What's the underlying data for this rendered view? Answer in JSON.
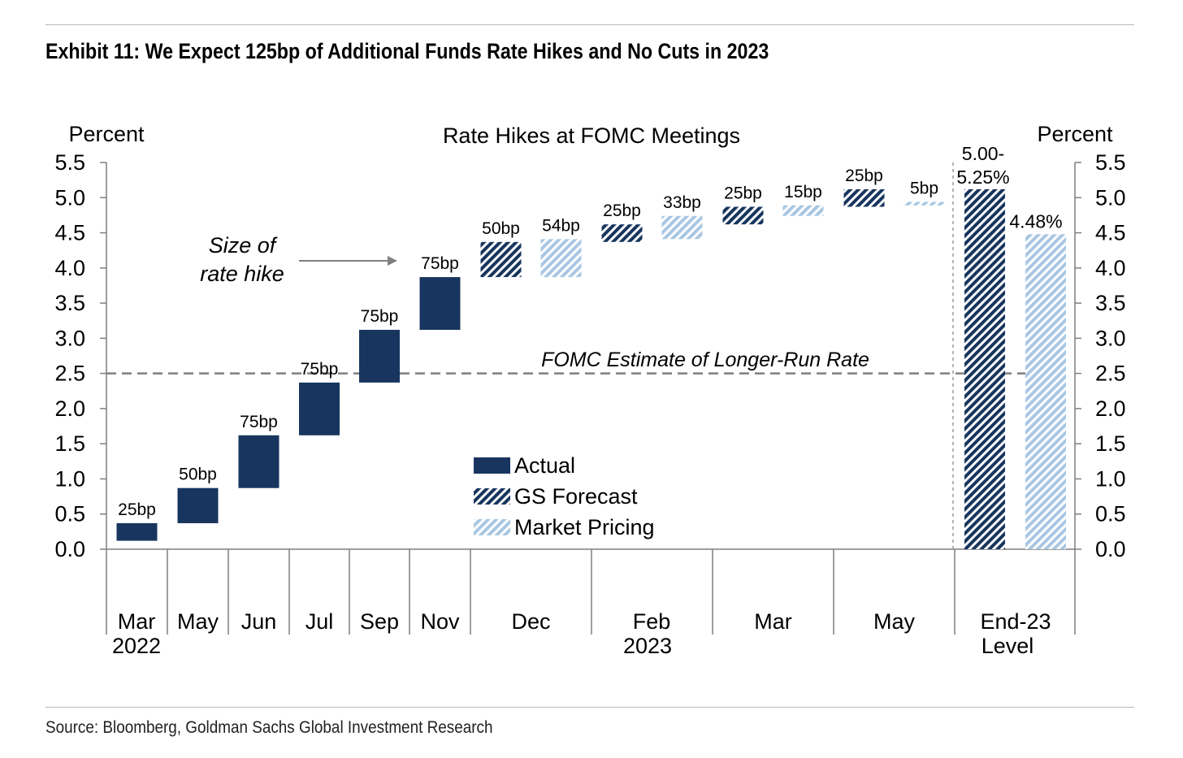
{
  "header": {
    "title": "Exhibit 11: We Expect 125bp of Additional Funds Rate Hikes and No Cuts in 2023"
  },
  "footer": {
    "source": "Source: Bloomberg, Goldman Sachs Global Investment Research"
  },
  "colors": {
    "actual": "#17355e",
    "gs_forecast": "#17355e",
    "market_pricing": "#a9c7e3",
    "reference_line": "#7f7f7f"
  },
  "chart_data": {
    "type": "bar",
    "subtype": "floating-bar",
    "title": "Rate Hikes at FOMC Meetings",
    "ylabel_left": "Percent",
    "ylabel_right": "Percent",
    "ylim": [
      0,
      5.5
    ],
    "yticks": [
      "0.0",
      "0.5",
      "1.0",
      "1.5",
      "2.0",
      "2.5",
      "3.0",
      "3.5",
      "4.0",
      "4.5",
      "5.0",
      "5.5"
    ],
    "grid": false,
    "legend": {
      "placement": "bottom-center",
      "entries": [
        "Actual",
        "GS Forecast",
        "Market Pricing"
      ]
    },
    "categories": [
      {
        "line1": "Mar",
        "line2": "2022"
      },
      {
        "line1": "May",
        "line2": ""
      },
      {
        "line1": "Jun",
        "line2": ""
      },
      {
        "line1": "Jul",
        "line2": ""
      },
      {
        "line1": "Sep",
        "line2": ""
      },
      {
        "line1": "Nov",
        "line2": ""
      },
      {
        "line1": "Dec",
        "line2": ""
      },
      {
        "line1": "Feb",
        "line2": "2023"
      },
      {
        "line1": "Mar",
        "line2": ""
      },
      {
        "line1": "May",
        "line2": ""
      },
      {
        "line1": "End-23",
        "line2": "Level"
      }
    ],
    "bars": [
      {
        "category": "Mar 2022",
        "series": "Actual",
        "low": 0.12,
        "high": 0.37,
        "label": "25bp"
      },
      {
        "category": "May",
        "series": "Actual",
        "low": 0.37,
        "high": 0.87,
        "label": "50bp"
      },
      {
        "category": "Jun",
        "series": "Actual",
        "low": 0.87,
        "high": 1.62,
        "label": "75bp"
      },
      {
        "category": "Jul",
        "series": "Actual",
        "low": 1.62,
        "high": 2.37,
        "label": "75bp"
      },
      {
        "category": "Sep",
        "series": "Actual",
        "low": 2.37,
        "high": 3.12,
        "label": "75bp"
      },
      {
        "category": "Nov",
        "series": "Actual",
        "low": 3.12,
        "high": 3.87,
        "label": "75bp"
      },
      {
        "category": "Dec",
        "series": "GS Forecast",
        "low": 3.87,
        "high": 4.37,
        "label": "50bp"
      },
      {
        "category": "Dec",
        "series": "Market Pricing",
        "low": 3.87,
        "high": 4.41,
        "label": "54bp"
      },
      {
        "category": "Feb 2023",
        "series": "GS Forecast",
        "low": 4.37,
        "high": 4.62,
        "label": "25bp"
      },
      {
        "category": "Feb 2023",
        "series": "Market Pricing",
        "low": 4.41,
        "high": 4.74,
        "label": "33bp"
      },
      {
        "category": "Mar",
        "series": "GS Forecast",
        "low": 4.62,
        "high": 4.87,
        "label": "25bp"
      },
      {
        "category": "Mar",
        "series": "Market Pricing",
        "low": 4.74,
        "high": 4.89,
        "label": "15bp"
      },
      {
        "category": "May",
        "series": "GS Forecast",
        "low": 4.87,
        "high": 5.12,
        "label": "25bp"
      },
      {
        "category": "May",
        "series": "Market Pricing",
        "low": 4.89,
        "high": 4.94,
        "label": "5bp"
      },
      {
        "category": "End-23 Level",
        "series": "GS Forecast",
        "low": 0,
        "high": 5.12,
        "label": "5.00-\n5.25%"
      },
      {
        "category": "End-23 Level",
        "series": "Market Pricing",
        "low": 0,
        "high": 4.48,
        "label": "4.48%"
      }
    ],
    "reference_line": {
      "value": 2.5,
      "label": "FOMC Estimate of Longer-Run Rate"
    },
    "annotation": {
      "text_line1": "Size of",
      "text_line2": "rate hike"
    }
  }
}
